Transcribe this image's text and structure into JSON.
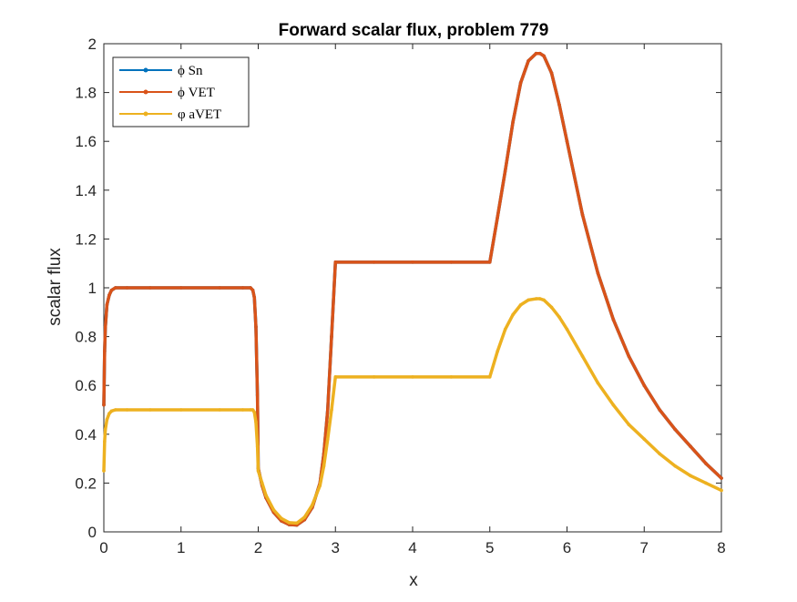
{
  "chart_data": {
    "type": "line",
    "title": "Forward scalar flux, problem 779",
    "xlabel": "x",
    "ylabel": "scalar flux",
    "xlim": [
      0,
      8
    ],
    "ylim": [
      0,
      2
    ],
    "xticks": [
      "0",
      "1",
      "2",
      "3",
      "4",
      "5",
      "6",
      "7",
      "8"
    ],
    "yticks": [
      "0",
      "0.2",
      "0.4",
      "0.6",
      "0.8",
      "1",
      "1.2",
      "1.4",
      "1.6",
      "1.8",
      "2"
    ],
    "grid": false,
    "legend_location": "top-left",
    "series": [
      {
        "name": "ϕ Sn",
        "color": "#0072BD",
        "x": [
          0,
          0.01,
          0.02,
          0.04,
          0.07,
          0.1,
          0.15,
          0.3,
          0.6,
          1.0,
          1.5,
          1.8,
          1.9,
          1.93,
          1.95,
          1.97,
          1.99,
          2.0,
          2.05,
          2.1,
          2.2,
          2.3,
          2.4,
          2.5,
          2.6,
          2.7,
          2.8,
          2.85,
          2.9,
          2.95,
          3.0,
          3.5,
          4.0,
          4.5,
          5.0,
          5.1,
          5.2,
          5.3,
          5.4,
          5.5,
          5.6,
          5.65,
          5.7,
          5.8,
          5.9,
          6.0,
          6.2,
          6.4,
          6.6,
          6.8,
          7.0,
          7.2,
          7.4,
          7.6,
          7.8,
          8.0
        ],
        "y": [
          0.52,
          0.74,
          0.84,
          0.93,
          0.97,
          0.99,
          1.0,
          1.0,
          1.0,
          1.0,
          1.0,
          1.0,
          1.0,
          0.99,
          0.96,
          0.84,
          0.56,
          0.26,
          0.19,
          0.14,
          0.08,
          0.045,
          0.03,
          0.028,
          0.05,
          0.1,
          0.2,
          0.32,
          0.5,
          0.8,
          1.105,
          1.105,
          1.105,
          1.105,
          1.105,
          1.29,
          1.48,
          1.68,
          1.84,
          1.93,
          1.96,
          1.96,
          1.95,
          1.88,
          1.75,
          1.6,
          1.3,
          1.06,
          0.87,
          0.72,
          0.6,
          0.5,
          0.42,
          0.35,
          0.28,
          0.22
        ]
      },
      {
        "name": "ϕ VET",
        "color": "#D95319",
        "x": [
          0,
          0.01,
          0.02,
          0.04,
          0.07,
          0.1,
          0.15,
          0.3,
          0.6,
          1.0,
          1.5,
          1.8,
          1.9,
          1.93,
          1.95,
          1.97,
          1.99,
          2.0,
          2.05,
          2.1,
          2.2,
          2.3,
          2.4,
          2.5,
          2.6,
          2.7,
          2.8,
          2.85,
          2.9,
          2.95,
          3.0,
          3.5,
          4.0,
          4.5,
          5.0,
          5.1,
          5.2,
          5.3,
          5.4,
          5.5,
          5.6,
          5.65,
          5.7,
          5.8,
          5.9,
          6.0,
          6.2,
          6.4,
          6.6,
          6.8,
          7.0,
          7.2,
          7.4,
          7.6,
          7.8,
          8.0
        ],
        "y": [
          0.52,
          0.74,
          0.84,
          0.93,
          0.97,
          0.99,
          1.0,
          1.0,
          1.0,
          1.0,
          1.0,
          1.0,
          1.0,
          0.99,
          0.96,
          0.84,
          0.56,
          0.26,
          0.19,
          0.14,
          0.08,
          0.045,
          0.03,
          0.028,
          0.05,
          0.1,
          0.2,
          0.32,
          0.5,
          0.8,
          1.105,
          1.105,
          1.105,
          1.105,
          1.105,
          1.29,
          1.48,
          1.68,
          1.84,
          1.93,
          1.96,
          1.96,
          1.95,
          1.88,
          1.75,
          1.6,
          1.3,
          1.06,
          0.87,
          0.72,
          0.6,
          0.5,
          0.42,
          0.35,
          0.28,
          0.22
        ]
      },
      {
        "name": "φ aVET",
        "color": "#EDB120",
        "x": [
          0,
          0.01,
          0.02,
          0.04,
          0.07,
          0.1,
          0.15,
          0.3,
          0.6,
          1.0,
          1.5,
          1.8,
          1.9,
          1.93,
          1.95,
          1.97,
          1.99,
          2.0,
          2.05,
          2.1,
          2.2,
          2.3,
          2.4,
          2.5,
          2.6,
          2.7,
          2.8,
          2.85,
          2.9,
          2.95,
          3.0,
          3.5,
          4.0,
          4.5,
          5.0,
          5.1,
          5.2,
          5.3,
          5.4,
          5.5,
          5.6,
          5.65,
          5.7,
          5.8,
          5.9,
          6.0,
          6.2,
          6.4,
          6.6,
          6.8,
          7.0,
          7.2,
          7.4,
          7.6,
          7.8,
          8.0
        ],
        "y": [
          0.25,
          0.37,
          0.42,
          0.46,
          0.485,
          0.495,
          0.5,
          0.5,
          0.5,
          0.5,
          0.5,
          0.5,
          0.5,
          0.5,
          0.49,
          0.45,
          0.35,
          0.25,
          0.2,
          0.15,
          0.09,
          0.055,
          0.038,
          0.036,
          0.06,
          0.11,
          0.19,
          0.27,
          0.38,
          0.5,
          0.635,
          0.635,
          0.635,
          0.635,
          0.635,
          0.74,
          0.83,
          0.89,
          0.93,
          0.95,
          0.955,
          0.955,
          0.95,
          0.92,
          0.88,
          0.83,
          0.72,
          0.61,
          0.52,
          0.44,
          0.38,
          0.32,
          0.27,
          0.23,
          0.2,
          0.17
        ]
      }
    ]
  }
}
